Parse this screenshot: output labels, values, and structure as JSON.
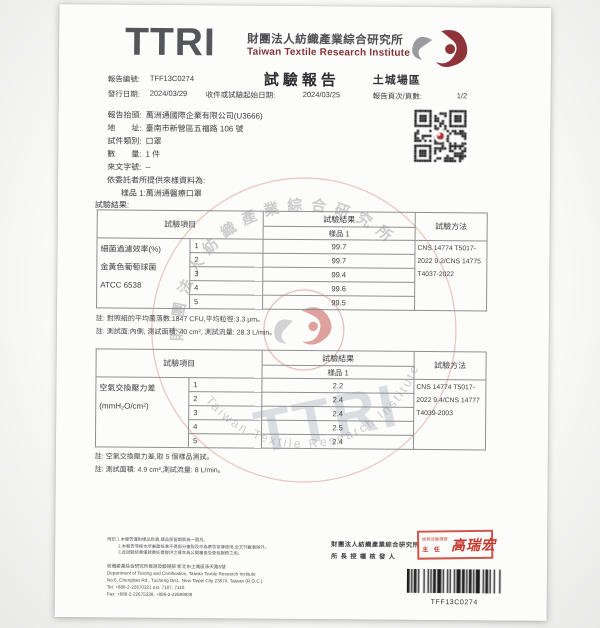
{
  "brand": {
    "logo_text": "TTRI",
    "org_zh": "財團法人紡織產業綜合研究所",
    "org_en": "Taiwan Textile Research Institute"
  },
  "header": {
    "title": "試驗報告",
    "site": "土城場區",
    "report_no_label": "報告編號:",
    "report_no": "TFF13C0274",
    "issue_date_label": "發行日期:",
    "issue_date": "2024/03/29",
    "receive_label": "收件或試驗起始日期:",
    "receive_date": "2024/03/25",
    "pages_label": "報告頁次/頁數:",
    "pages": "1/2"
  },
  "info": {
    "rows": [
      {
        "label": "報告抬頭:",
        "value": "萬洲通國際企業有限公司(U3666)"
      },
      {
        "label": "地　　址:",
        "value": "臺南市新營區五福路 106 號"
      },
      {
        "label": "試件類別:",
        "value": "口罩"
      },
      {
        "label": "數　　量:",
        "value": "1 件"
      },
      {
        "label": "來文字號:",
        "value": "--"
      }
    ],
    "sample_intro": "依委託者所提供來樣資料為:",
    "sample_line": "樣品 1:萬洲通醫療口罩"
  },
  "results_label": "試驗結果:",
  "table1": {
    "col_item": "試驗項目",
    "col_result": "試驗結果",
    "col_sample": "樣品 1",
    "col_method": "試驗方法",
    "item_lines": [
      "細菌過濾效率(%)",
      "金黃色葡萄球菌",
      "ATCC 6538"
    ],
    "rows": [
      [
        "1",
        "99.7"
      ],
      [
        "2",
        "99.7"
      ],
      [
        "3",
        "99.4"
      ],
      [
        "4",
        "99.6"
      ],
      [
        "5",
        "99.5"
      ]
    ],
    "method_lines": [
      "CNS 14774 T5017-",
      "2022 9.2/CNS 14775",
      "T4037-2022"
    ],
    "notes": [
      "註: 對照組的平均菌落數:1847 CFU,平均粒徑:3.3 μm。",
      "註: 測試面:內側, 測試面積: 40 cm², 測試流量: 28.3 L/min。"
    ]
  },
  "table2": {
    "col_item": "試驗項目",
    "col_result": "試驗結果",
    "col_sample": "樣品 1",
    "col_method": "試驗方法",
    "item_lines": [
      "空氣交換壓力差",
      "(mmH₂O/cm²)"
    ],
    "rows": [
      [
        "1",
        "2.2"
      ],
      [
        "2",
        "2.4"
      ],
      [
        "3",
        "2.4"
      ],
      [
        "4",
        "2.5"
      ],
      [
        "5",
        "2.4"
      ]
    ],
    "method_lines": [
      "CNS 14774 T5017-",
      "2022 9.4/CNS 14777",
      "T4039-2003"
    ],
    "notes": [
      "註: 空氣交換壓力差,取 5 個樣品測試。",
      "註: 測試面積: 4.9 cm²,測試流量: 8 L/min。"
    ]
  },
  "watermark": {
    "ring_zh": "財團法人紡織產業綜合研究所",
    "ring_en": "Taiwan Textile Research Institute",
    "big_text": "TTRI"
  },
  "footer": {
    "remark_lines": [
      "附記:1.本報告僅對樣品負責,樣品保留期限為一個月。",
      "2.本報告非經本所書面核准不得部分複製及作為廣告宣傳使用,全文刊載者除外。",
      "3.此試驗結果僅就委託者提供之樣本為公開審查及查核服務之用。"
    ],
    "address_lines": [
      "紡織產業綜合研究所檢測及驗證部 新北市土城區承天路6號",
      "Department of Testing and Certification, Taiwan Textile Research Institute",
      "No.6, Chengtian Rd., Tucheng Dist., New Taipei City 23674, Taiwan (R.O.C.)",
      "Tel: +886-2-22670321 ext. 7107, 7110",
      "Fax: +886-2-22675338, +886-2-22689839"
    ],
    "org_line1": "財團法人紡織產業綜合研究所",
    "org_line2": "所長授權核發人",
    "stamp_dept": "檢測及驗證部",
    "stamp_title": "主 任",
    "stamp_name": "高瑞宏",
    "barcode_text": "TFF13C0274"
  }
}
